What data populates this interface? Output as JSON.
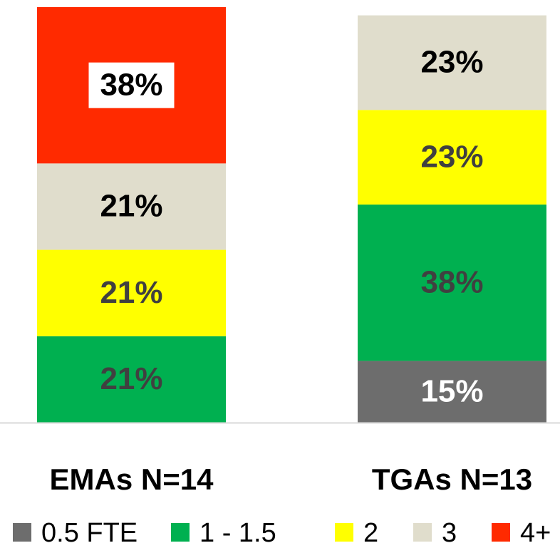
{
  "chart_data": {
    "type": "stacked_bar",
    "categories": [
      "EMAs N=14",
      "TGAs N=13"
    ],
    "series": [
      {
        "name": "0.5 FTE",
        "color": "#6d6d6d",
        "label_color": "#ffffff",
        "values": [
          null,
          15
        ],
        "value_labels": [
          null,
          "15%"
        ]
      },
      {
        "name": "1 - 1.5",
        "color": "#00b050",
        "label_color": "#404040",
        "values": [
          21,
          38
        ],
        "value_labels": [
          "21%",
          "38%"
        ]
      },
      {
        "name": "2",
        "color": "#ffff00",
        "label_color": "#404040",
        "values": [
          21,
          23
        ],
        "value_labels": [
          "21%",
          "23%"
        ]
      },
      {
        "name": "3",
        "color": "#e0ddcc",
        "label_color": "#000000",
        "values": [
          21,
          23
        ],
        "value_labels": [
          "21%",
          "23%"
        ]
      },
      {
        "name": "4+",
        "color": "#ff2a00",
        "label_color": "#000000",
        "label_background": "#ffffff",
        "values": [
          38,
          null
        ],
        "value_labels": [
          "38%",
          null
        ]
      }
    ],
    "legend": "bottom"
  }
}
